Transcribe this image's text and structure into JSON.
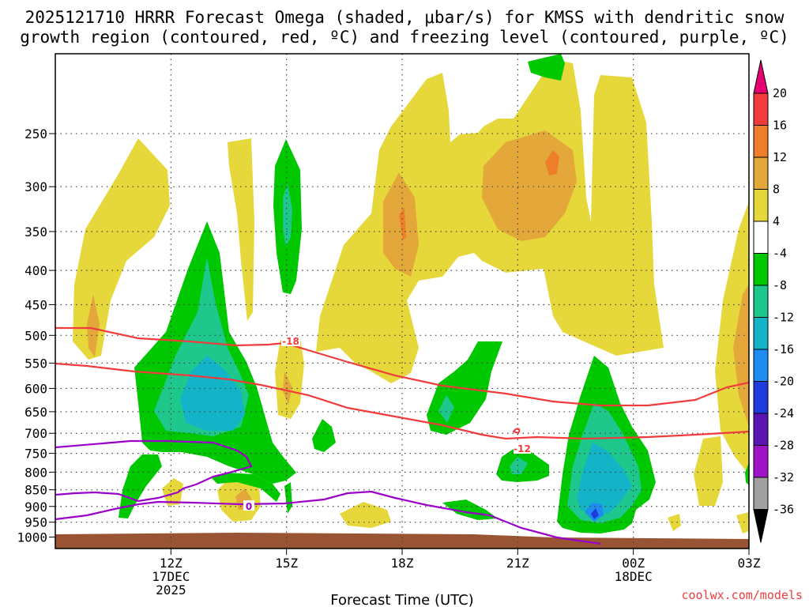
{
  "chart_data": {
    "type": "contour",
    "title_line1": "2025121710 HRRR Forecast Omega (shaded, μbar/s) for KMSS with dendritic snow",
    "title_line2": "growth region (contoured, red, ºC) and freezing level (contoured, purple, ºC)",
    "xlabel": "Forecast Time (UTC)",
    "x_range_hours": [
      9,
      27
    ],
    "x_ticks": [
      {
        "hour": 12,
        "lines": [
          "12Z",
          "17DEC",
          "2025"
        ]
      },
      {
        "hour": 15,
        "lines": [
          "15Z"
        ]
      },
      {
        "hour": 18,
        "lines": [
          "18Z"
        ]
      },
      {
        "hour": 21,
        "lines": [
          "21Z"
        ]
      },
      {
        "hour": 24,
        "lines": [
          "00Z",
          "18DEC"
        ]
      },
      {
        "hour": 27,
        "lines": [
          "03Z"
        ]
      }
    ],
    "y_ticks": [
      250,
      300,
      350,
      400,
      450,
      500,
      550,
      600,
      650,
      700,
      750,
      800,
      850,
      900,
      950,
      1000
    ],
    "colorbar": {
      "labels": [
        "20",
        "16",
        "12",
        "8",
        "4",
        "-4",
        "-8",
        "-12",
        "-16",
        "-20",
        "-24",
        "-28",
        "-32",
        "-36"
      ],
      "colors": [
        "#e60073",
        "#f23c3c",
        "#ee7e2a",
        "#e4a83a",
        "#e6d83a",
        "#ffffff",
        "#00c800",
        "#1ec88c",
        "#14b4c8",
        "#1e8cf0",
        "#1e3cdc",
        "#5a14b4",
        "#a014c8",
        "#a0a0a0",
        "#000000"
      ]
    },
    "shading_colors": {
      "y4": "#e6d83a",
      "y8": "#e4a83a",
      "y12": "#ee7e2a",
      "g4": "#00c800",
      "g8": "#1ec88c",
      "g12": "#14b4c8",
      "g16": "#1e8cf0",
      "g20": "#1e3cdc",
      "terrain": "#995533"
    },
    "contour_labels": {
      "dgz_upper": "-18",
      "dgz_lower": "-12",
      "freezing": "0"
    },
    "dgz_color": "#f03c3c",
    "freezing_color": "#9b00c8"
  },
  "credit": "coolwx.com/models"
}
